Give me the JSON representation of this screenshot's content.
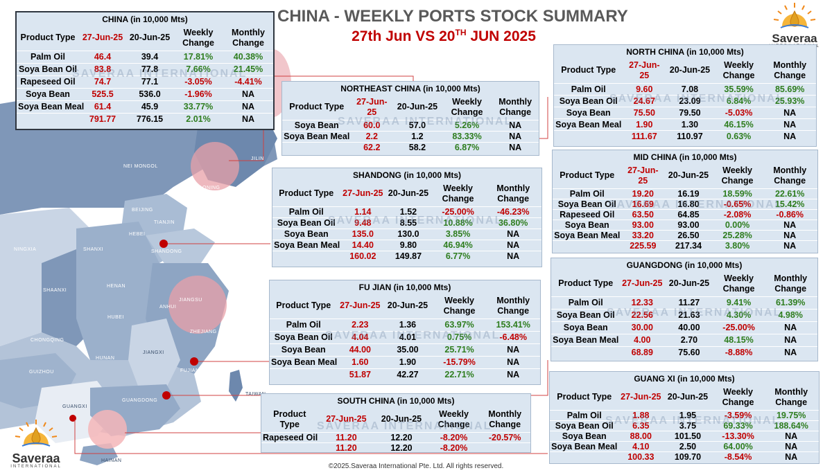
{
  "title": "CHINA - WEEKLY PORTS STOCK SUMMARY",
  "subtitle_pre": "27th Jun VS 20",
  "subtitle_sup": "TH",
  "subtitle_post": " JUN 2025",
  "logo": {
    "word": "Saveraa",
    "sub": "INTERNATIONAL"
  },
  "watermark": "SAVERAA INTERNATIONAL",
  "footer": "©2025.Saveraa International Pte. Ltd. All rights reserved.",
  "map_labels": [
    "NEI MONGOL",
    "JILIN",
    "LIAONING",
    "BEIJING",
    "TIANJIN",
    "HEBEI",
    "NINGXIA",
    "SHANXI",
    "SHANDONG",
    "SHAANXI",
    "HENAN",
    "JIANGSU",
    "ANHUI",
    "SHANGHAI",
    "HUBEI",
    "ZHEJIANG",
    "CHONGQING",
    "HUNAN",
    "JIANGXI",
    "GUIZHOU",
    "FUJIAN",
    "TAIWAN",
    "GUANGXI",
    "GUANGDONG",
    "HAINAN"
  ],
  "headers": {
    "product": "Product Type",
    "d27a": "27-Jun-25",
    "d20": "20-Jun-25",
    "weekly": "Weekly Change",
    "monthly": "Monthly Change"
  },
  "tables": {
    "china": {
      "title": "CHINA (in 10,000 Mts)",
      "rows": [
        [
          "Palm Oil",
          "46.4",
          "39.4",
          "17.81%",
          "40.38%"
        ],
        [
          "Soya Bean Oil",
          "83.8",
          "77.8",
          "7.66%",
          "21.45%"
        ],
        [
          "Rapeseed Oil",
          "74.7",
          "77.1",
          "-3.05%",
          "-4.41%"
        ],
        [
          "Soya Bean",
          "525.5",
          "536.0",
          "-1.96%",
          "NA"
        ],
        [
          "Soya Bean Meal",
          "61.4",
          "45.9",
          "33.77%",
          "NA"
        ]
      ],
      "total": [
        "",
        "791.77",
        "776.15",
        "2.01%",
        "NA"
      ]
    },
    "northeast": {
      "title": "NORTHEAST CHINA (in 10,000 Mts)",
      "rows": [
        [
          "Soya Bean",
          "60.0",
          "57.0",
          "5.26%",
          "NA"
        ],
        [
          "Soya Bean Meal",
          "2.2",
          "1.2",
          "83.33%",
          "NA"
        ]
      ],
      "total": [
        "",
        "62.2",
        "58.2",
        "6.87%",
        "NA"
      ]
    },
    "shandong": {
      "title": "SHANDONG (in 10,000 Mts)",
      "rows": [
        [
          "Palm Oil",
          "1.14",
          "1.52",
          "-25.00%",
          "-46.23%"
        ],
        [
          "Soya Bean Oil",
          "9.48",
          "8.55",
          "10.88%",
          "36.80%"
        ],
        [
          "Soya Bean",
          "135.0",
          "130.0",
          "3.85%",
          "NA"
        ],
        [
          "Soya Bean Meal",
          "14.40",
          "9.80",
          "46.94%",
          "NA"
        ]
      ],
      "total": [
        "",
        "160.02",
        "149.87",
        "6.77%",
        "NA"
      ]
    },
    "fujian": {
      "title": "FU JIAN (in 10,000 Mts)",
      "rows": [
        [
          "Palm Oil",
          "2.23",
          "1.36",
          "63.97%",
          "153.41%"
        ],
        [
          "Soya Bean Oil",
          "4.04",
          "4.01",
          "0.75%",
          "-6.48%"
        ],
        [
          "Soya Bean",
          "44.00",
          "35.00",
          "25.71%",
          "NA"
        ],
        [
          "Soya Bean Meal",
          "1.60",
          "1.90",
          "-15.79%",
          "NA"
        ]
      ],
      "total": [
        "",
        "51.87",
        "42.27",
        "22.71%",
        "NA"
      ]
    },
    "south": {
      "title": "SOUTH CHINA (in 10,000 Mts)",
      "rows": [
        [
          "Rapeseed Oil",
          "11.20",
          "12.20",
          "-8.20%",
          "-20.57%"
        ]
      ],
      "total": [
        "",
        "11.20",
        "12.20",
        "-8.20%",
        ""
      ]
    },
    "north": {
      "title": "NORTH CHINA (in 10,000 Mts)",
      "rows": [
        [
          "Palm Oil",
          "9.60",
          "7.08",
          "35.59%",
          "85.69%"
        ],
        [
          "Soya Bean Oil",
          "24.67",
          "23.09",
          "6.84%",
          "25.93%"
        ],
        [
          "Soya Bean",
          "75.50",
          "79.50",
          "-5.03%",
          "NA"
        ],
        [
          "Soya Bean Meal",
          "1.90",
          "1.30",
          "46.15%",
          "NA"
        ]
      ],
      "total": [
        "",
        "111.67",
        "110.97",
        "0.63%",
        "NA"
      ]
    },
    "mid": {
      "title": "MID CHINA (in 10,000 Mts)",
      "rows": [
        [
          "Palm Oil",
          "19.20",
          "16.19",
          "18.59%",
          "22.61%"
        ],
        [
          "Soya Bean Oil",
          "16.69",
          "16.80",
          "-0.65%",
          "15.42%"
        ],
        [
          "Rapeseed Oil",
          "63.50",
          "64.85",
          "-2.08%",
          "-0.86%"
        ],
        [
          "Soya Bean",
          "93.00",
          "93.00",
          "0.00%",
          "NA"
        ],
        [
          "Soya Bean Meal",
          "33.20",
          "26.50",
          "25.28%",
          "NA"
        ]
      ],
      "total": [
        "",
        "225.59",
        "217.34",
        "3.80%",
        "NA"
      ]
    },
    "guangdong": {
      "title": "GUANGDONG (in 10,000 Mts)",
      "rows": [
        [
          "Palm Oil",
          "12.33",
          "11.27",
          "9.41%",
          "61.39%"
        ],
        [
          "Soya Bean Oil",
          "22.56",
          "21.63",
          "4.30%",
          "4.98%"
        ],
        [
          "Soya Bean",
          "30.00",
          "40.00",
          "-25.00%",
          "NA"
        ],
        [
          "Soya Bean Meal",
          "4.00",
          "2.70",
          "48.15%",
          "NA"
        ]
      ],
      "total": [
        "",
        "68.89",
        "75.60",
        "-8.88%",
        "NA"
      ]
    },
    "guangxi": {
      "title": "GUANG XI (in 10,000 Mts)",
      "rows": [
        [
          "Palm Oil",
          "1.88",
          "1.95",
          "-3.59%",
          "19.75%"
        ],
        [
          "Soya Bean Oil",
          "6.35",
          "3.75",
          "69.33%",
          "188.64%"
        ],
        [
          "Soya Bean",
          "88.00",
          "101.50",
          "-13.30%",
          "NA"
        ],
        [
          "Soya Bean Meal",
          "4.10",
          "2.50",
          "64.00%",
          "NA"
        ]
      ],
      "total": [
        "",
        "100.33",
        "109.70",
        "-8.54%",
        "NA"
      ]
    }
  },
  "colors": {
    "panel_bg": "#dbe6f1",
    "value_red": "#c00000",
    "value_green": "#2e7d1e",
    "map_dark": "#7f97b8",
    "map_light": "#c9d5e5",
    "highlight": "#e8a0a8"
  }
}
